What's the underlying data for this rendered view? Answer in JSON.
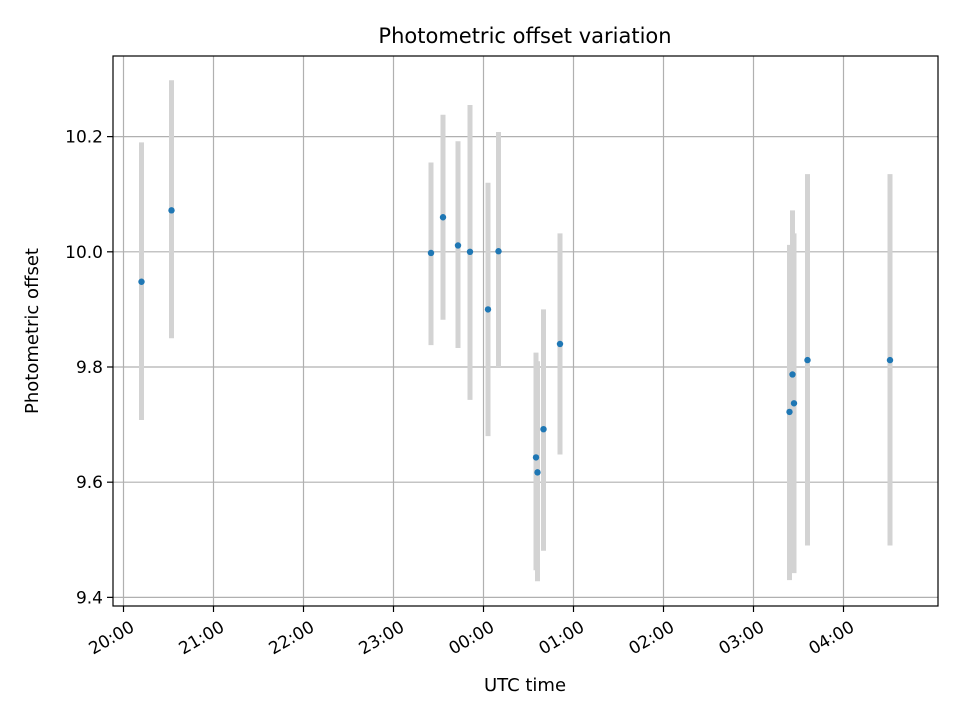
{
  "chart_data": {
    "type": "scatter",
    "title": "Photometric offset variation",
    "xlabel": "UTC time",
    "ylabel": "Photometric offset",
    "x_ticks": [
      "20:00",
      "21:00",
      "22:00",
      "23:00",
      "00:00",
      "01:00",
      "02:00",
      "03:00",
      "04:00"
    ],
    "y_ticks": [
      "9.4",
      "9.6",
      "9.8",
      "10.0",
      "10.2"
    ],
    "y_tick_values": [
      9.4,
      9.6,
      9.8,
      10.0,
      10.2
    ],
    "xlim": [
      "19:53",
      "05:03"
    ],
    "ylim": [
      9.385,
      10.34
    ],
    "grid": true,
    "errorbar_color": "#d3d3d3",
    "marker_color": "#1f77b4",
    "points": [
      {
        "time": "20:12",
        "y": 9.948,
        "ylow": 9.708,
        "yhigh": 10.19
      },
      {
        "time": "20:32",
        "y": 10.072,
        "ylow": 9.85,
        "yhigh": 10.298
      },
      {
        "time": "23:25",
        "y": 9.998,
        "ylow": 9.838,
        "yhigh": 10.155
      },
      {
        "time": "23:33",
        "y": 10.06,
        "ylow": 9.882,
        "yhigh": 10.238
      },
      {
        "time": "23:43",
        "y": 10.011,
        "ylow": 9.833,
        "yhigh": 10.192
      },
      {
        "time": "23:51",
        "y": 10.0,
        "ylow": 9.743,
        "yhigh": 10.255
      },
      {
        "time": "00:03",
        "y": 9.9,
        "ylow": 9.68,
        "yhigh": 10.12
      },
      {
        "time": "00:10",
        "y": 10.001,
        "ylow": 9.8,
        "yhigh": 10.208
      },
      {
        "time": "00:35",
        "y": 9.643,
        "ylow": 9.447,
        "yhigh": 9.825
      },
      {
        "time": "00:36",
        "y": 9.617,
        "ylow": 9.428,
        "yhigh": 9.81
      },
      {
        "time": "00:40",
        "y": 9.692,
        "ylow": 9.481,
        "yhigh": 9.9
      },
      {
        "time": "00:51",
        "y": 9.84,
        "ylow": 9.648,
        "yhigh": 10.032
      },
      {
        "time": "03:24",
        "y": 9.722,
        "ylow": 9.43,
        "yhigh": 10.012
      },
      {
        "time": "03:26",
        "y": 9.787,
        "ylow": 9.508,
        "yhigh": 10.072
      },
      {
        "time": "03:27",
        "y": 9.737,
        "ylow": 9.442,
        "yhigh": 10.032
      },
      {
        "time": "03:36",
        "y": 9.812,
        "ylow": 9.49,
        "yhigh": 10.135
      },
      {
        "time": "04:31",
        "y": 9.812,
        "ylow": 9.49,
        "yhigh": 10.135
      }
    ]
  }
}
